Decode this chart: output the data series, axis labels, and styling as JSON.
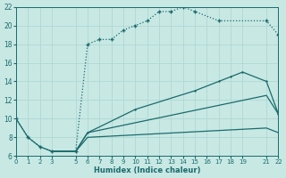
{
  "xlabel": "Humidex (Indice chaleur)",
  "xlim": [
    0,
    22
  ],
  "ylim": [
    6,
    22
  ],
  "xticks": [
    0,
    1,
    2,
    3,
    5,
    6,
    7,
    8,
    9,
    10,
    11,
    12,
    13,
    14,
    15,
    16,
    17,
    18,
    19,
    21,
    22
  ],
  "yticks": [
    6,
    8,
    10,
    12,
    14,
    16,
    18,
    20,
    22
  ],
  "bg_color": "#c8e8e4",
  "grid_color": "#b0d8d4",
  "line_color": "#1a6b6b",
  "curve1_x": [
    0,
    1,
    2,
    3,
    5,
    6,
    7,
    8,
    9,
    10,
    11,
    12,
    13,
    14,
    15,
    17,
    21,
    22
  ],
  "curve1_y": [
    10,
    8,
    7,
    6.5,
    6.5,
    18,
    18.5,
    18.5,
    19.5,
    20,
    20.5,
    21.5,
    21.5,
    22,
    21.5,
    20.5,
    20.5,
    19
  ],
  "curve2_x": [
    0,
    1,
    2,
    3,
    5,
    6,
    10,
    15,
    17,
    18,
    19,
    21,
    22
  ],
  "curve2_y": [
    10,
    8,
    7,
    6.5,
    6.5,
    8.5,
    11,
    13,
    14,
    14.5,
    15,
    14,
    10.5
  ],
  "curve3_x": [
    3,
    5,
    6,
    21,
    22
  ],
  "curve3_y": [
    6.5,
    6.5,
    8.5,
    12.5,
    10.5
  ],
  "curve4_x": [
    3,
    5,
    6,
    21,
    22
  ],
  "curve4_y": [
    6.5,
    6.5,
    8.0,
    9.0,
    8.5
  ]
}
